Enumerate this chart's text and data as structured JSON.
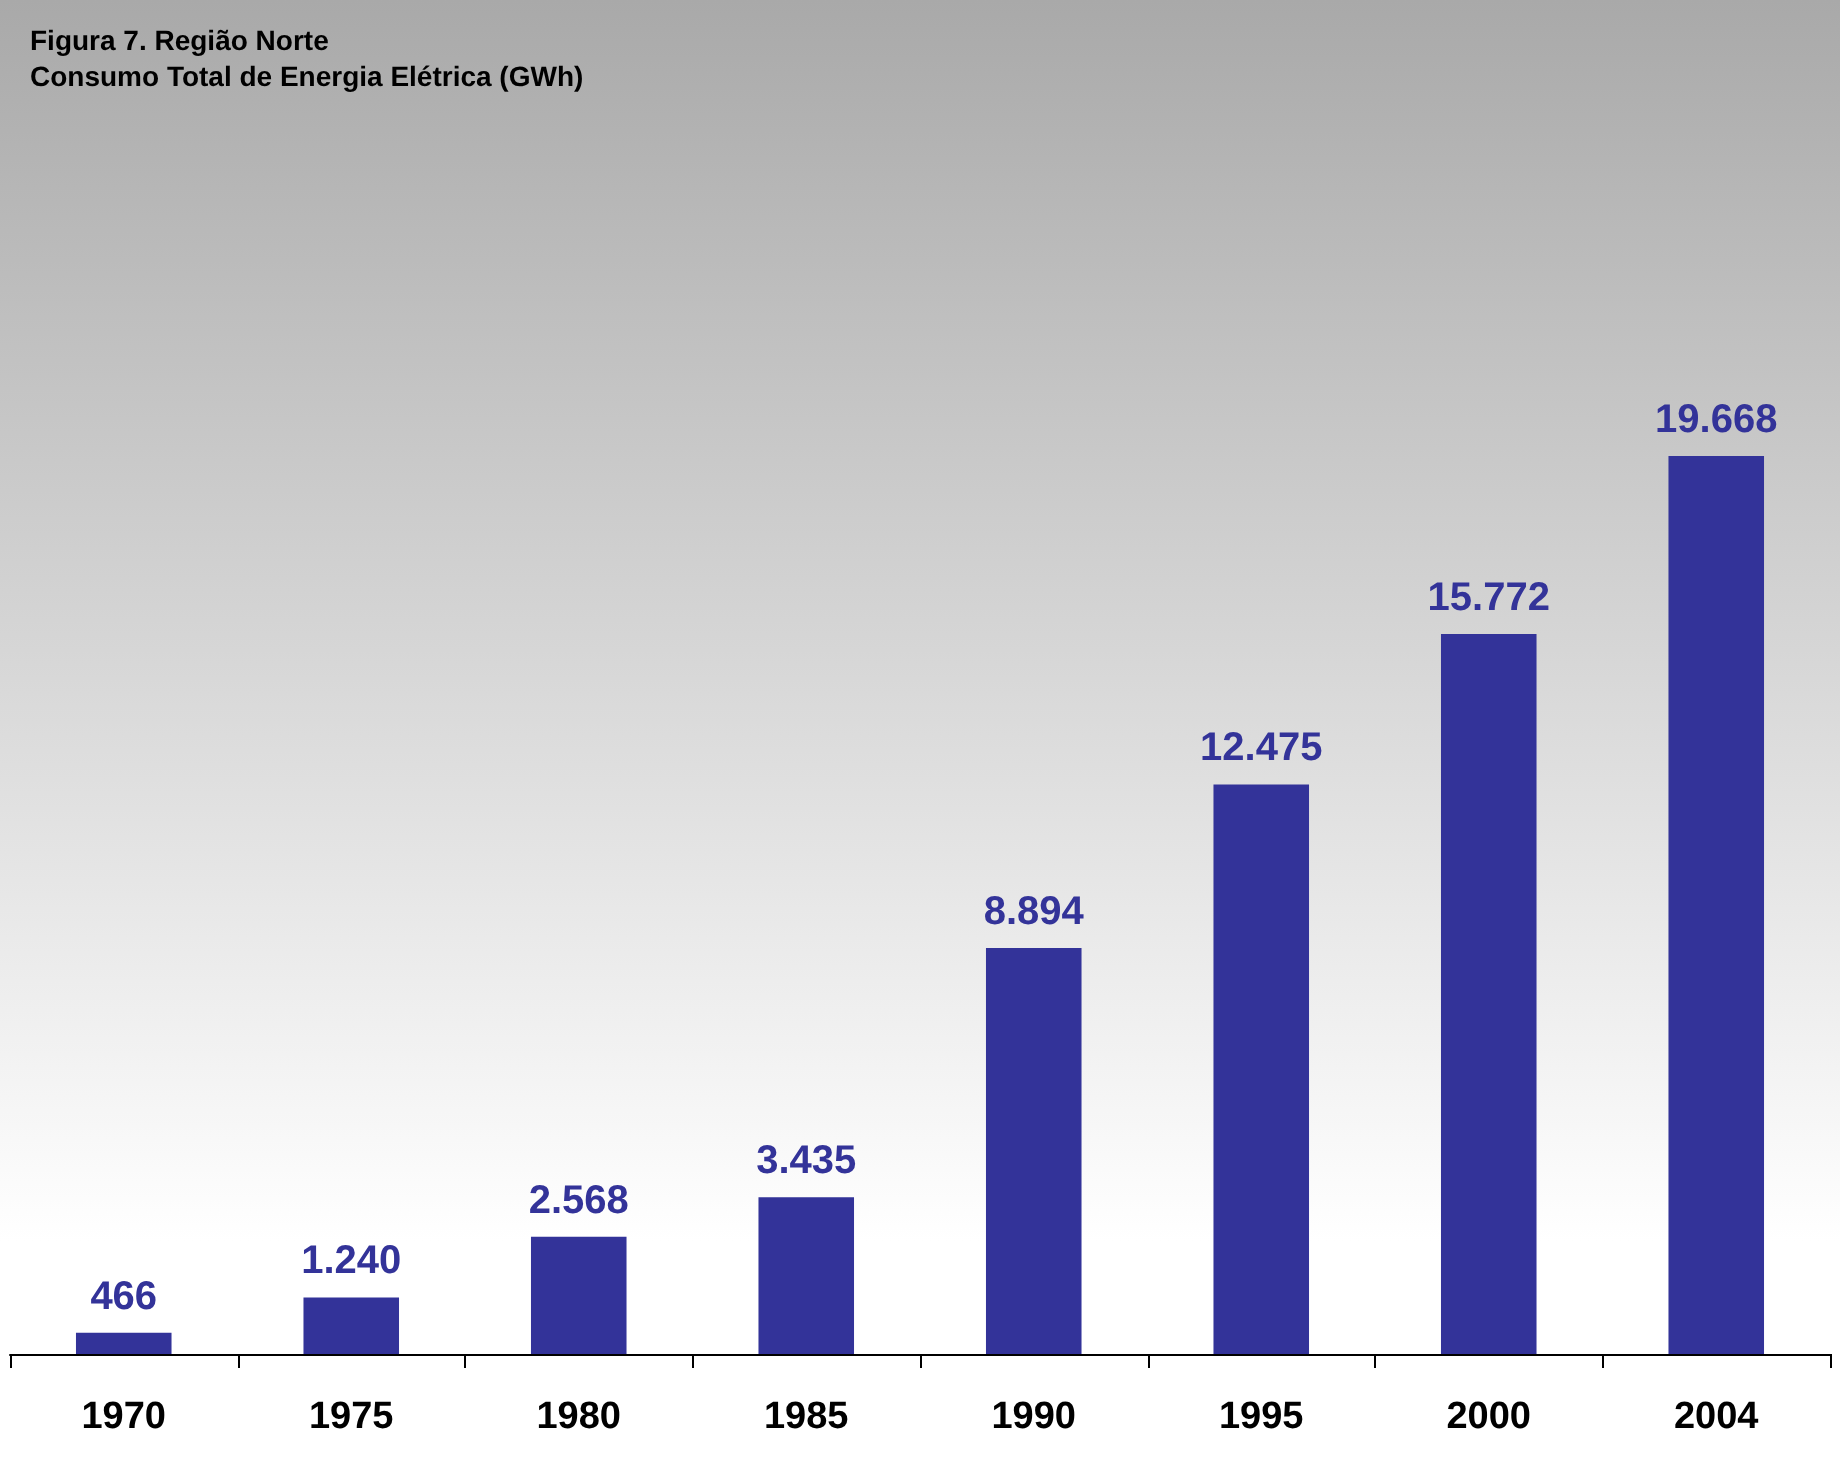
{
  "chart_data": {
    "type": "bar",
    "title": "Figura 7. Região Norte",
    "subtitle": "Consumo Total de Energia Elétrica (GWh)",
    "categories": [
      "1970",
      "1975",
      "1980",
      "1985",
      "1990",
      "1995",
      "2000",
      "2004"
    ],
    "values": [
      466,
      1240,
      2568,
      3435,
      8894,
      12475,
      15772,
      19668
    ],
    "value_labels": [
      "466",
      "1.240",
      "2.568",
      "3.435",
      "8.894",
      "12.475",
      "15.772",
      "19.668"
    ],
    "color": "#333399"
  }
}
